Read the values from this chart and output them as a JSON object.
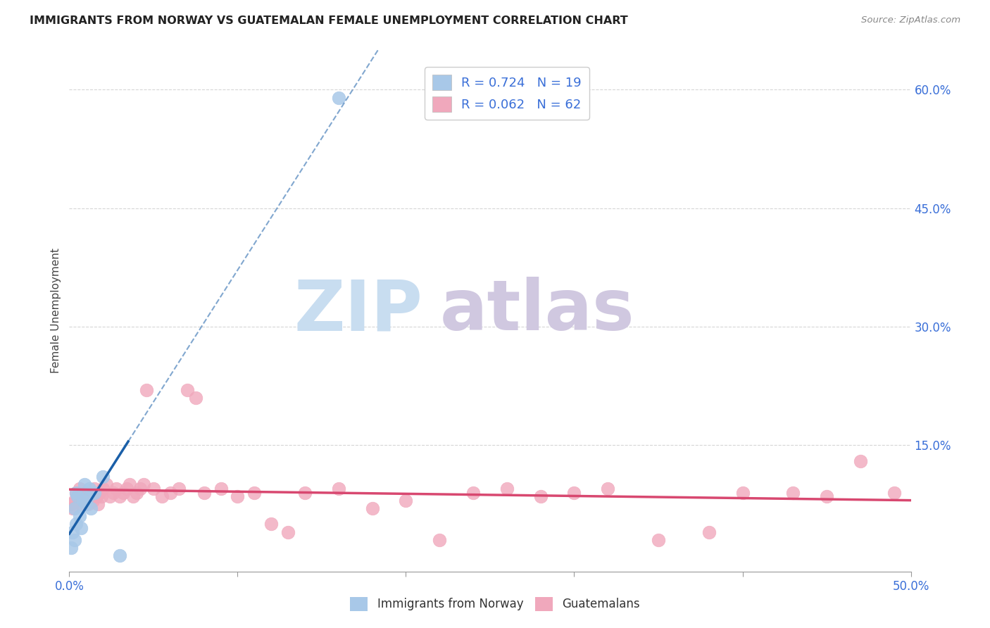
{
  "title": "IMMIGRANTS FROM NORWAY VS GUATEMALAN FEMALE UNEMPLOYMENT CORRELATION CHART",
  "source": "Source: ZipAtlas.com",
  "ylabel_left": "Female Unemployment",
  "legend_labels": [
    "Immigrants from Norway",
    "Guatemalans"
  ],
  "norway_R": "R = 0.724",
  "norway_N": "N = 19",
  "guatemalan_R": "R = 0.062",
  "guatemalan_N": "N = 62",
  "xlim": [
    0.0,
    0.5
  ],
  "ylim": [
    -0.01,
    0.65
  ],
  "xticks": [
    0.0,
    0.1,
    0.2,
    0.3,
    0.4,
    0.5
  ],
  "xtick_labels": [
    "0.0%",
    "",
    "",
    "",
    "",
    "50.0%"
  ],
  "yticks_right": [
    0.15,
    0.3,
    0.45,
    0.6
  ],
  "ytick_labels_right": [
    "15.0%",
    "30.0%",
    "45.0%",
    "60.0%"
  ],
  "norway_dots_x": [
    0.001,
    0.002,
    0.003,
    0.003,
    0.004,
    0.004,
    0.005,
    0.006,
    0.007,
    0.008,
    0.009,
    0.01,
    0.011,
    0.012,
    0.013,
    0.015,
    0.02,
    0.03,
    0.16
  ],
  "norway_dots_y": [
    0.02,
    0.04,
    0.03,
    0.07,
    0.09,
    0.05,
    0.085,
    0.06,
    0.045,
    0.08,
    0.1,
    0.075,
    0.085,
    0.095,
    0.07,
    0.09,
    0.11,
    0.01,
    0.59
  ],
  "guatemalan_dots_x": [
    0.001,
    0.002,
    0.003,
    0.004,
    0.005,
    0.006,
    0.007,
    0.008,
    0.009,
    0.01,
    0.011,
    0.012,
    0.013,
    0.014,
    0.015,
    0.016,
    0.017,
    0.018,
    0.019,
    0.02,
    0.022,
    0.024,
    0.026,
    0.028,
    0.03,
    0.032,
    0.034,
    0.036,
    0.038,
    0.04,
    0.042,
    0.044,
    0.046,
    0.05,
    0.055,
    0.06,
    0.065,
    0.07,
    0.075,
    0.08,
    0.09,
    0.1,
    0.11,
    0.12,
    0.13,
    0.14,
    0.16,
    0.18,
    0.2,
    0.22,
    0.24,
    0.26,
    0.28,
    0.3,
    0.32,
    0.35,
    0.38,
    0.4,
    0.43,
    0.45,
    0.47,
    0.49
  ],
  "guatemalan_dots_y": [
    0.075,
    0.07,
    0.08,
    0.09,
    0.085,
    0.095,
    0.075,
    0.08,
    0.085,
    0.09,
    0.075,
    0.085,
    0.09,
    0.08,
    0.095,
    0.085,
    0.075,
    0.09,
    0.085,
    0.095,
    0.1,
    0.085,
    0.09,
    0.095,
    0.085,
    0.09,
    0.095,
    0.1,
    0.085,
    0.09,
    0.095,
    0.1,
    0.22,
    0.095,
    0.085,
    0.09,
    0.095,
    0.22,
    0.21,
    0.09,
    0.095,
    0.085,
    0.09,
    0.05,
    0.04,
    0.09,
    0.095,
    0.07,
    0.08,
    0.03,
    0.09,
    0.095,
    0.085,
    0.09,
    0.095,
    0.03,
    0.04,
    0.09,
    0.09,
    0.085,
    0.13,
    0.09
  ],
  "norway_color": "#a8c8e8",
  "norway_line_color": "#1a5fa8",
  "guatemalan_color": "#f0a8bc",
  "guatemalan_line_color": "#d84870",
  "grid_color": "#cccccc",
  "watermark_zip_color": "#c8ddf0",
  "watermark_atlas_color": "#d0c8e0",
  "background_color": "#ffffff"
}
